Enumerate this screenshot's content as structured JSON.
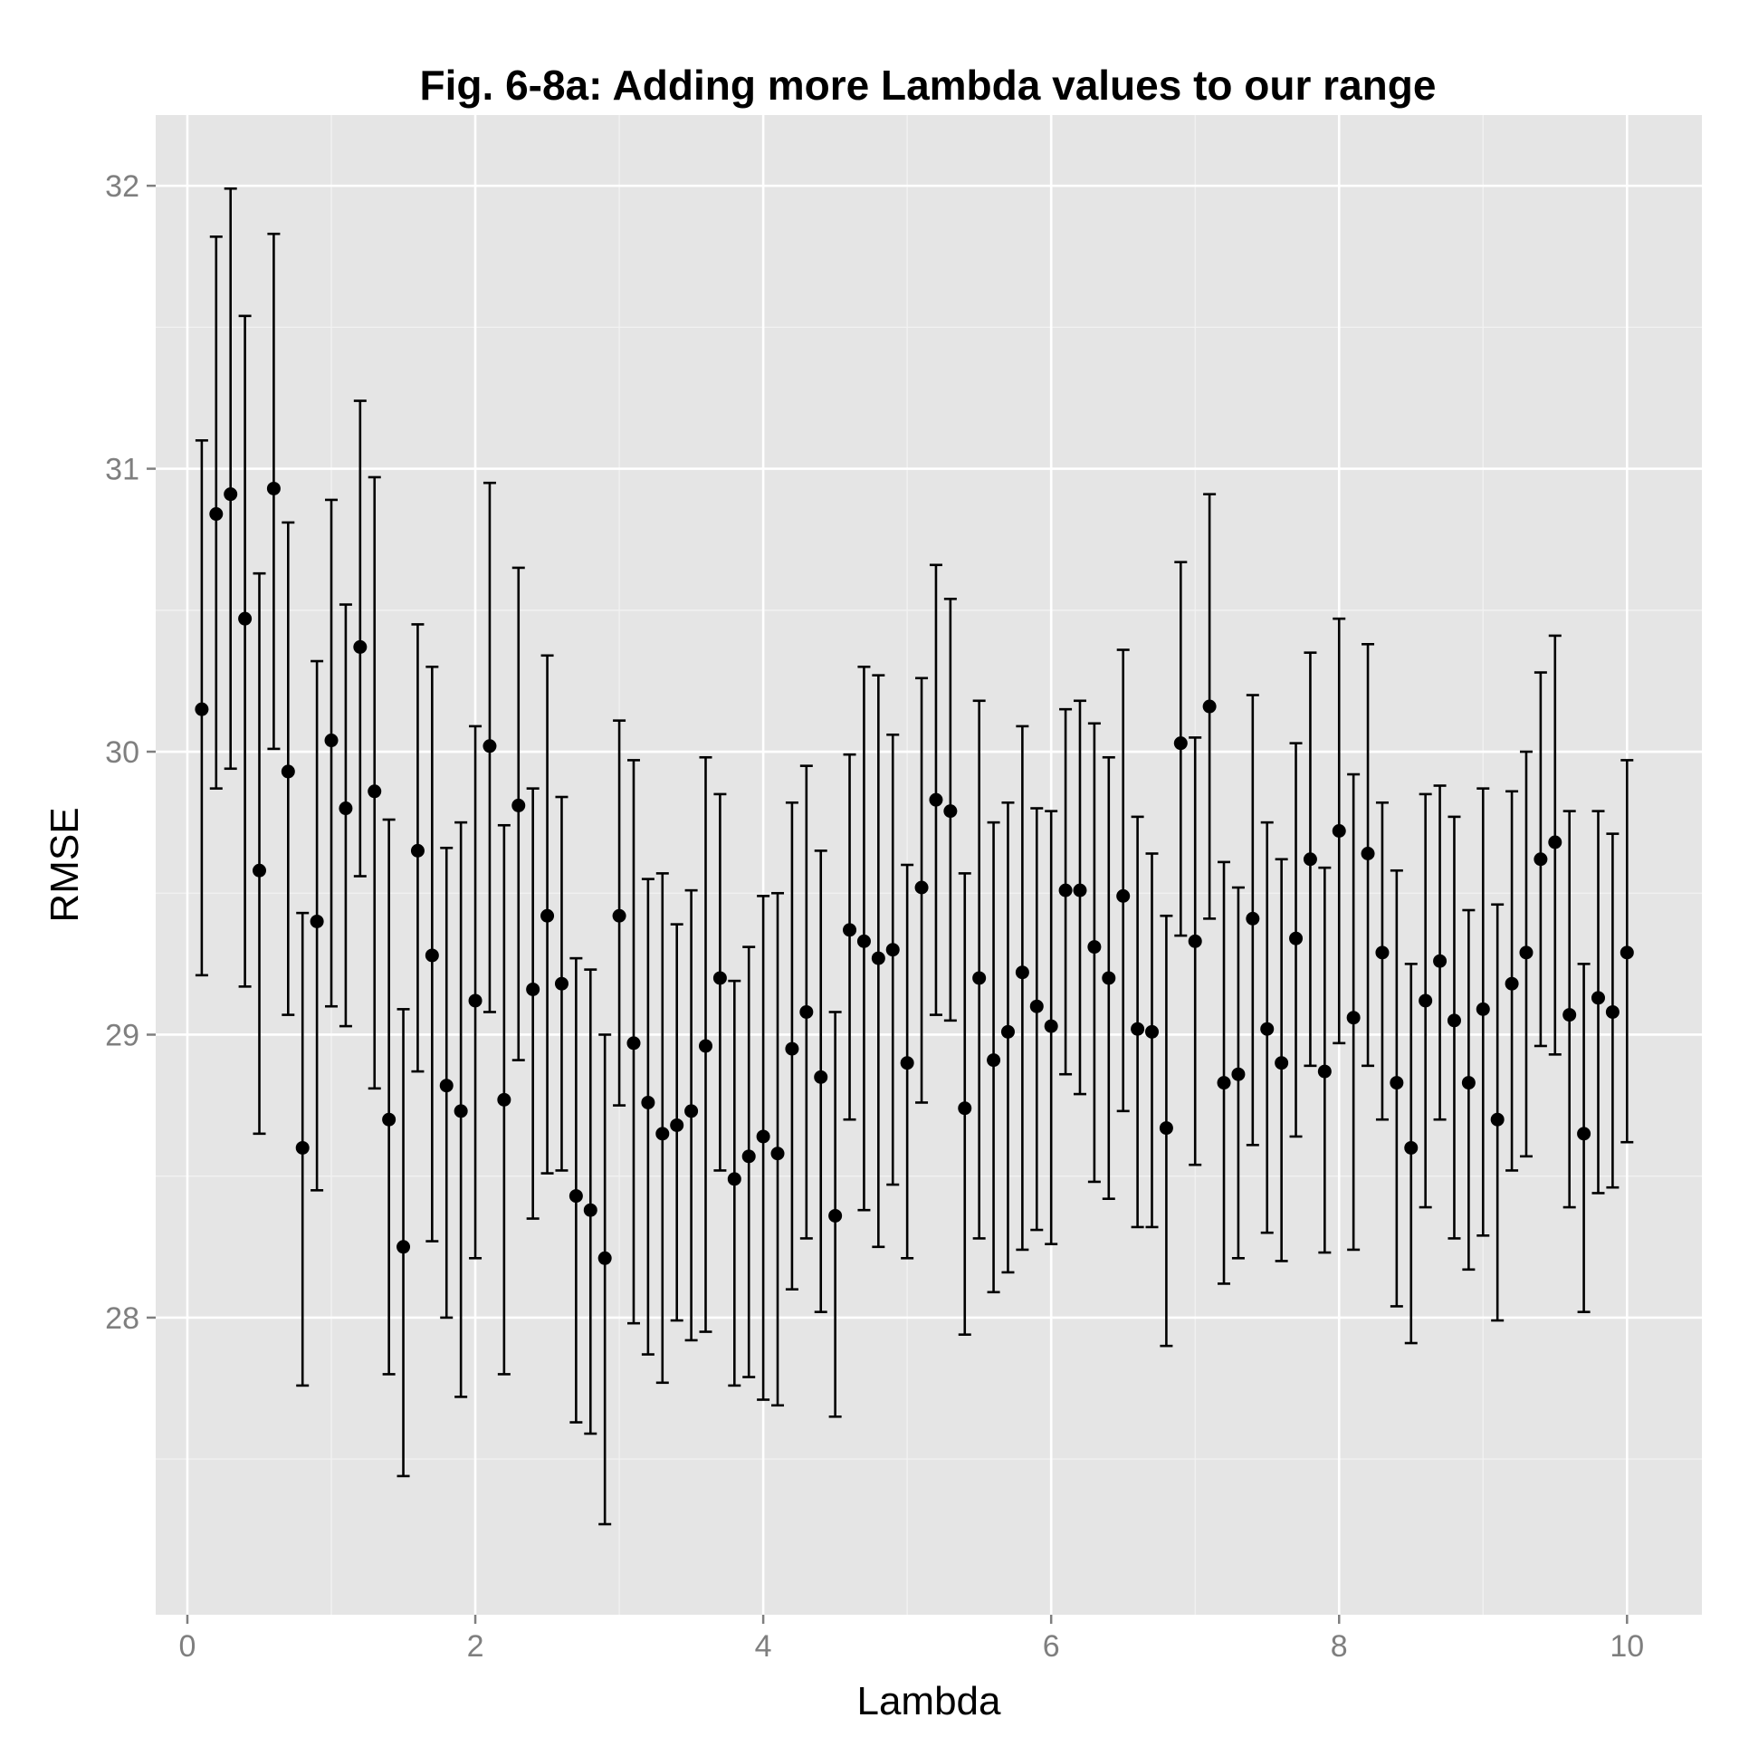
{
  "colors": {
    "panel_background": "#e5e5e5",
    "grid_major": "#ffffff",
    "grid_minor": "#f2f2f2",
    "tick_text": "#7f7f7f",
    "tick_mark": "#7f7f7f",
    "points": "#000000",
    "error_bars": "#000000",
    "page_background": "#ffffff"
  },
  "chart_data": {
    "type": "scatter",
    "title": "Fig. 6-8a: Adding more Lambda values to our range",
    "xlabel": "Lambda",
    "ylabel": "RMSE",
    "xlim": [
      -0.22,
      10.52
    ],
    "ylim": [
      26.95,
      32.25
    ],
    "x_ticks": [
      0,
      2,
      4,
      6,
      8,
      10
    ],
    "x_tick_labels": [
      "0",
      "2",
      "4",
      "6",
      "8",
      "10"
    ],
    "y_ticks": [
      28,
      29,
      30,
      31,
      32
    ],
    "y_tick_labels": [
      "28",
      "29",
      "30",
      "31",
      "32"
    ],
    "grid": true,
    "legend": "none",
    "error_bars": true,
    "series": [
      {
        "x": [
          0.1,
          0.2,
          0.3,
          0.4,
          0.5,
          0.6,
          0.7,
          0.8,
          0.9,
          1.0,
          1.1,
          1.2,
          1.3,
          1.4,
          1.5,
          1.6,
          1.7,
          1.8,
          1.9,
          2.0,
          2.1,
          2.2,
          2.3,
          2.4,
          2.5,
          2.6,
          2.7,
          2.8,
          2.9,
          3.0,
          3.1,
          3.2,
          3.3,
          3.4,
          3.5,
          3.6,
          3.7,
          3.8,
          3.9,
          4.0,
          4.1,
          4.2,
          4.3,
          4.4,
          4.5,
          4.6,
          4.7,
          4.8,
          4.9,
          5.0,
          5.1,
          5.2,
          5.3,
          5.4,
          5.5,
          5.6,
          5.7,
          5.8,
          5.9,
          6.0,
          6.1,
          6.2,
          6.3,
          6.4,
          6.5,
          6.6,
          6.7,
          6.8,
          6.9,
          7.0,
          7.1,
          7.2,
          7.3,
          7.4,
          7.5,
          7.6,
          7.7,
          7.8,
          7.9,
          8.0,
          8.1,
          8.2,
          8.3,
          8.4,
          8.5,
          8.6,
          8.7,
          8.8,
          8.9,
          9.0,
          9.1,
          9.2,
          9.3,
          9.4,
          9.5,
          9.6,
          9.7,
          9.8,
          9.9,
          10.0
        ],
        "y": [
          30.15,
          30.84,
          30.91,
          30.47,
          29.58,
          30.93,
          29.93,
          28.6,
          29.4,
          30.04,
          29.8,
          30.37,
          29.86,
          28.7,
          28.25,
          29.65,
          29.28,
          28.82,
          28.73,
          29.12,
          30.02,
          28.77,
          29.81,
          29.16,
          29.42,
          29.18,
          28.43,
          28.38,
          28.21,
          29.42,
          28.97,
          28.76,
          28.65,
          28.68,
          28.73,
          28.96,
          29.2,
          28.49,
          28.57,
          28.64,
          28.58,
          28.95,
          29.08,
          28.85,
          28.36,
          29.37,
          29.33,
          29.27,
          29.3,
          28.9,
          29.52,
          29.83,
          29.79,
          28.74,
          29.2,
          28.91,
          29.01,
          29.22,
          29.1,
          29.03,
          29.51,
          29.51,
          29.31,
          29.2,
          29.49,
          29.02,
          29.01,
          28.67,
          30.03,
          29.33,
          30.16,
          28.83,
          28.86,
          29.41,
          29.02,
          28.9,
          29.34,
          29.62,
          28.87,
          29.72,
          29.06,
          29.64,
          29.29,
          28.83,
          28.6,
          29.12,
          29.26,
          29.05,
          28.83,
          29.09,
          28.7,
          29.18,
          29.29,
          29.62,
          29.68,
          29.07,
          28.65,
          29.13,
          29.08,
          29.29
        ],
        "ymin": [
          29.21,
          29.87,
          29.94,
          29.17,
          28.65,
          30.01,
          29.07,
          27.76,
          28.45,
          29.1,
          29.03,
          29.56,
          28.81,
          27.8,
          27.44,
          28.87,
          28.27,
          28.0,
          27.72,
          28.21,
          29.08,
          27.8,
          28.91,
          28.35,
          28.51,
          28.52,
          27.63,
          27.59,
          27.27,
          28.75,
          27.98,
          27.87,
          27.77,
          27.99,
          27.92,
          27.95,
          28.52,
          27.76,
          27.79,
          27.71,
          27.69,
          28.1,
          28.28,
          28.02,
          27.65,
          28.7,
          28.38,
          28.25,
          28.47,
          28.21,
          28.76,
          29.07,
          29.05,
          27.94,
          28.28,
          28.09,
          28.16,
          28.24,
          28.31,
          28.26,
          28.86,
          28.79,
          28.48,
          28.42,
          28.73,
          28.32,
          28.32,
          27.9,
          29.35,
          28.54,
          29.41,
          28.12,
          28.21,
          28.61,
          28.3,
          28.2,
          28.64,
          28.89,
          28.23,
          28.97,
          28.24,
          28.89,
          28.7,
          28.04,
          27.91,
          28.39,
          28.7,
          28.28,
          28.17,
          28.29,
          27.99,
          28.52,
          28.57,
          28.96,
          28.93,
          28.39,
          28.02,
          28.44,
          28.46,
          28.62
        ],
        "ymax": [
          31.1,
          31.82,
          31.99,
          31.54,
          30.63,
          31.83,
          30.81,
          29.43,
          30.32,
          30.89,
          30.52,
          31.24,
          30.97,
          29.76,
          29.09,
          30.45,
          30.3,
          29.66,
          29.75,
          30.09,
          30.95,
          29.74,
          30.65,
          29.87,
          30.34,
          29.84,
          29.27,
          29.23,
          29.0,
          30.11,
          29.97,
          29.55,
          29.57,
          29.39,
          29.51,
          29.98,
          29.85,
          29.19,
          29.31,
          29.49,
          29.5,
          29.82,
          29.95,
          29.65,
          29.08,
          29.99,
          30.3,
          30.27,
          30.06,
          29.6,
          30.26,
          30.66,
          30.54,
          29.57,
          30.18,
          29.75,
          29.82,
          30.09,
          29.8,
          29.79,
          30.15,
          30.18,
          30.1,
          29.98,
          30.36,
          29.77,
          29.64,
          29.42,
          30.67,
          30.05,
          30.91,
          29.61,
          29.52,
          30.2,
          29.75,
          29.62,
          30.03,
          30.35,
          29.59,
          30.47,
          29.92,
          30.38,
          29.82,
          29.58,
          29.25,
          29.85,
          29.88,
          29.77,
          29.44,
          29.87,
          29.46,
          29.86,
          30.0,
          30.28,
          30.41,
          29.79,
          29.25,
          29.79,
          29.71,
          29.97
        ]
      }
    ]
  }
}
